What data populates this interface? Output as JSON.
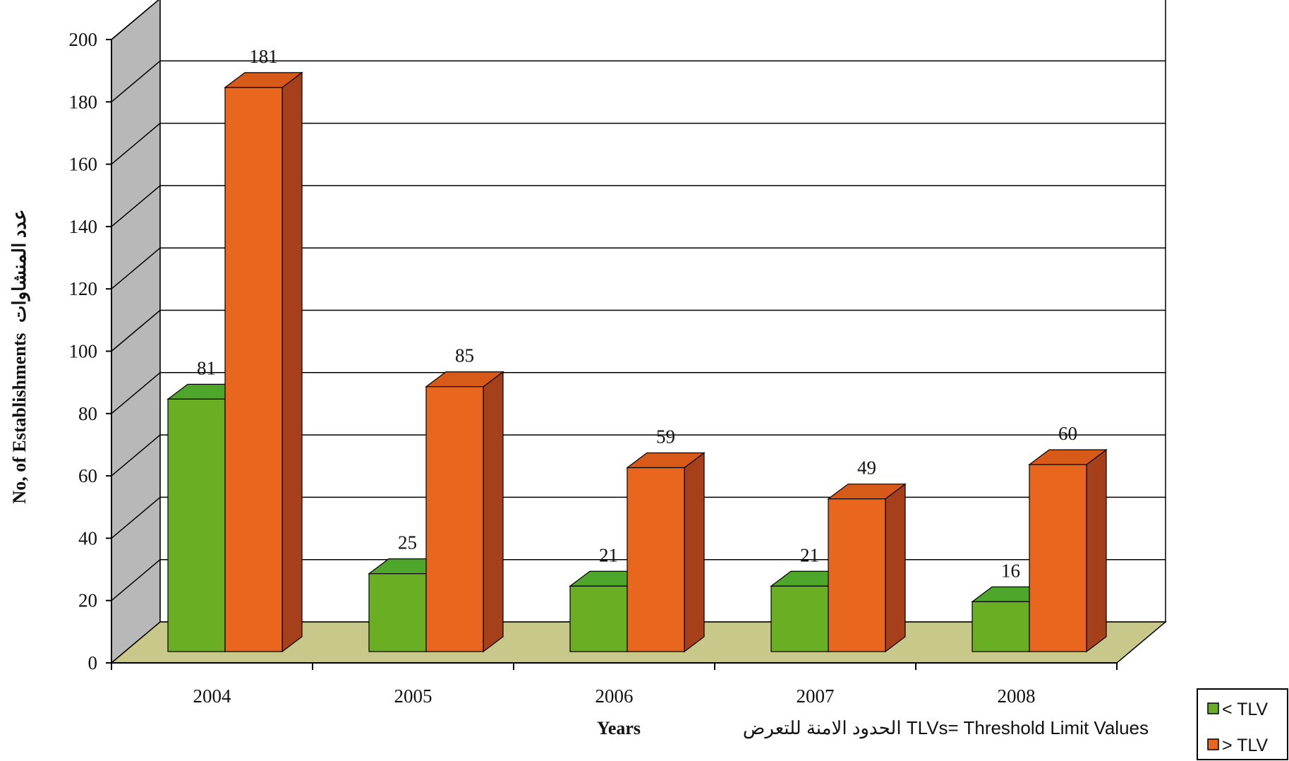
{
  "chart_data": {
    "type": "bar",
    "categories": [
      "2004",
      "2005",
      "2006",
      "2007",
      "2008"
    ],
    "series": [
      {
        "name": "< TLV",
        "values": [
          81,
          25,
          21,
          21,
          16
        ],
        "color": "#6aaf23",
        "top": "#4ea62a",
        "side": "#3e7f18"
      },
      {
        "name": "> TLV",
        "values": [
          181,
          85,
          59,
          49,
          60
        ],
        "color": "#e8661e",
        "top": "#d85a18",
        "side": "#a6401a"
      }
    ],
    "ylim": [
      0,
      200
    ],
    "yticks": [
      0,
      20,
      40,
      60,
      80,
      100,
      120,
      140,
      160,
      180,
      200
    ],
    "xlabel": "Years",
    "ylabel": "No, of Establishments",
    "ylabel_ar": "عدد المنشاوات",
    "note": "TLVs= Threshold Limit Values",
    "note_ar": "الحدود الامنة للتعرض",
    "legend_position": "bottom-right",
    "grid": true,
    "floor_color": "#c8c88a",
    "wall_color": "#b8b8b8"
  }
}
